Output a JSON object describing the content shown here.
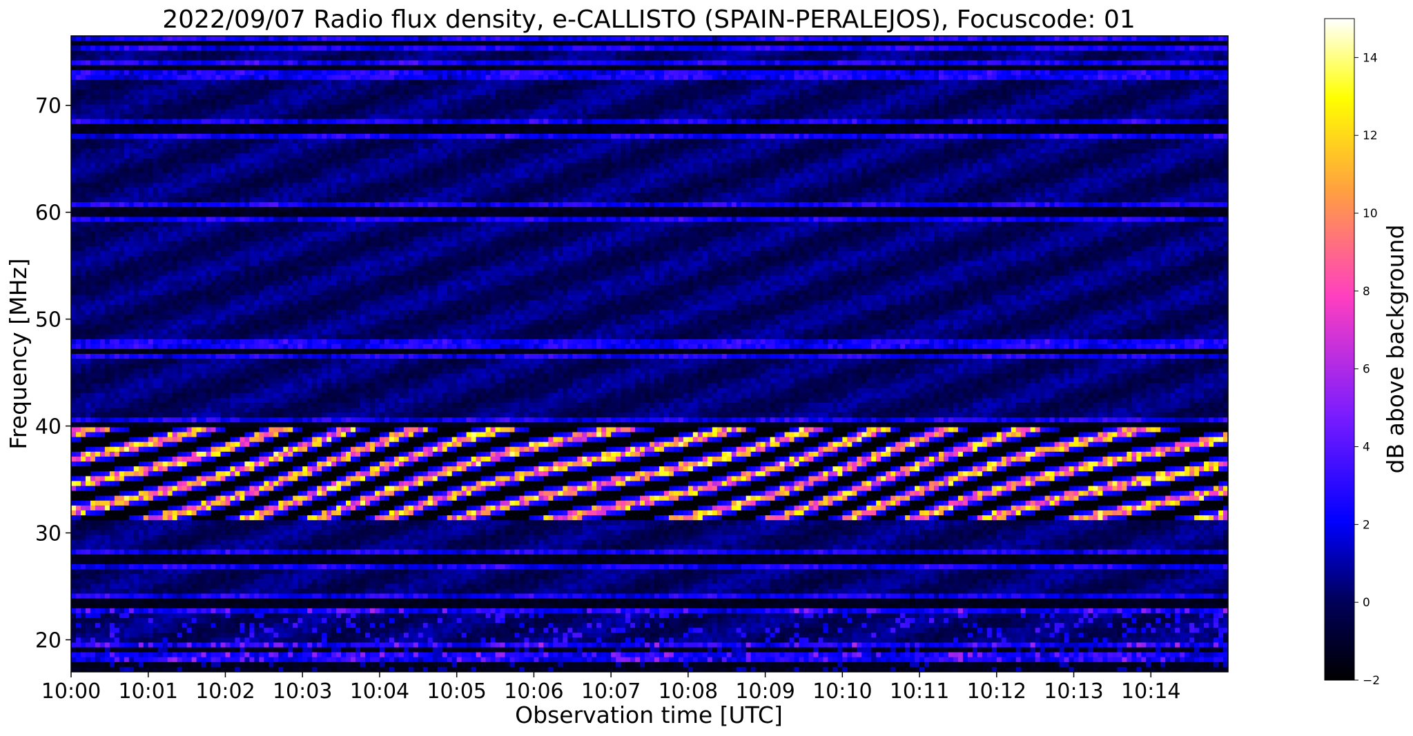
{
  "chart_data": {
    "type": "heatmap",
    "title": "2022/09/07  Radio flux density, e-CALLISTO (SPAIN-PERALEJOS), Focuscode: 01",
    "xlabel": "Observation time [UTC]",
    "ylabel": "Frequency [MHz]",
    "colorbar_label": "dB above background",
    "x_ticks": [
      "10:00",
      "10:01",
      "10:02",
      "10:03",
      "10:04",
      "10:05",
      "10:06",
      "10:07",
      "10:08",
      "10:09",
      "10:10",
      "10:11",
      "10:12",
      "10:13",
      "10:14"
    ],
    "x_range_minutes": [
      0,
      15
    ],
    "y_ticks": [
      20,
      30,
      40,
      50,
      60,
      70
    ],
    "ylim": [
      17,
      76.5
    ],
    "colorbar_ticks": [
      -2,
      0,
      2,
      4,
      6,
      8,
      10,
      12,
      14
    ],
    "clim": [
      -2,
      15
    ],
    "colormap": "gnuplot2",
    "colormap_stops": [
      "#000000",
      "#00005a",
      "#0000ff",
      "#7a1cff",
      "#ff3fc0",
      "#ffa040",
      "#ffff00",
      "#ffffff"
    ],
    "background_color": "#0a0a8c",
    "strong_band_mhz": [
      31,
      40
    ],
    "horizontal_lines_mhz": [
      75.8,
      73.5,
      67.8,
      60.0,
      47.0,
      40.0,
      27.5,
      23.5,
      19.0,
      17.5
    ]
  }
}
